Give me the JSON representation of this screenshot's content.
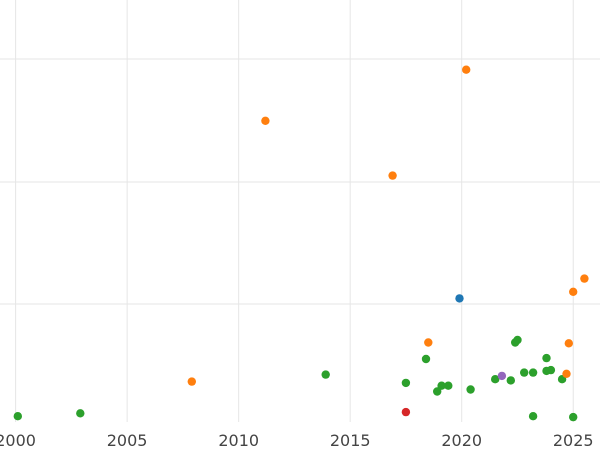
{
  "chart_data": {
    "type": "scatter",
    "title": "",
    "xlabel": "",
    "ylabel": "",
    "xlim": [
      1999.3,
      2026.2
    ],
    "ylim": [
      0,
      1
    ],
    "grid": true,
    "legend": "none",
    "x_ticks": [
      2000,
      2005,
      2010,
      2015,
      2020,
      2025
    ],
    "x_tick_labels": [
      "2000",
      "2005",
      "2010",
      "2015",
      "2020",
      "2025"
    ],
    "y_tick_labels": [],
    "color_groups": {
      "green": "#2ca02c",
      "orange": "#ff7f0e",
      "blue": "#1f77b4",
      "red": "#d62728",
      "purple": "#9467bd"
    },
    "series": [
      {
        "color": "#2ca02c",
        "points": [
          {
            "x": 2000.1,
            "y": 0.014
          },
          {
            "x": 2002.9,
            "y": 0.021
          },
          {
            "x": 2013.9,
            "y": 0.115
          },
          {
            "x": 2017.5,
            "y": 0.095
          },
          {
            "x": 2018.4,
            "y": 0.153
          },
          {
            "x": 2018.9,
            "y": 0.074
          },
          {
            "x": 2019.1,
            "y": 0.088
          },
          {
            "x": 2019.4,
            "y": 0.088
          },
          {
            "x": 2020.4,
            "y": 0.079
          },
          {
            "x": 2021.5,
            "y": 0.104
          },
          {
            "x": 2022.2,
            "y": 0.101
          },
          {
            "x": 2022.4,
            "y": 0.193
          },
          {
            "x": 2022.5,
            "y": 0.199
          },
          {
            "x": 2022.8,
            "y": 0.12
          },
          {
            "x": 2023.2,
            "y": 0.12
          },
          {
            "x": 2023.2,
            "y": 0.014
          },
          {
            "x": 2023.8,
            "y": 0.124
          },
          {
            "x": 2023.8,
            "y": 0.155
          },
          {
            "x": 2024.0,
            "y": 0.126
          },
          {
            "x": 2024.5,
            "y": 0.104
          },
          {
            "x": 2025.0,
            "y": 0.012
          }
        ]
      },
      {
        "color": "#ff7f0e",
        "points": [
          {
            "x": 2007.9,
            "y": 0.098
          },
          {
            "x": 2011.2,
            "y": 0.731
          },
          {
            "x": 2016.9,
            "y": 0.598
          },
          {
            "x": 2018.5,
            "y": 0.193
          },
          {
            "x": 2020.2,
            "y": 0.855
          },
          {
            "x": 2024.7,
            "y": 0.117
          },
          {
            "x": 2024.8,
            "y": 0.191
          },
          {
            "x": 2025.0,
            "y": 0.316
          },
          {
            "x": 2025.5,
            "y": 0.348
          }
        ]
      },
      {
        "color": "#1f77b4",
        "points": [
          {
            "x": 2019.9,
            "y": 0.3
          }
        ]
      },
      {
        "color": "#d62728",
        "points": [
          {
            "x": 2017.5,
            "y": 0.024
          }
        ]
      },
      {
        "color": "#9467bd",
        "points": [
          {
            "x": 2021.8,
            "y": 0.112
          }
        ]
      }
    ]
  }
}
